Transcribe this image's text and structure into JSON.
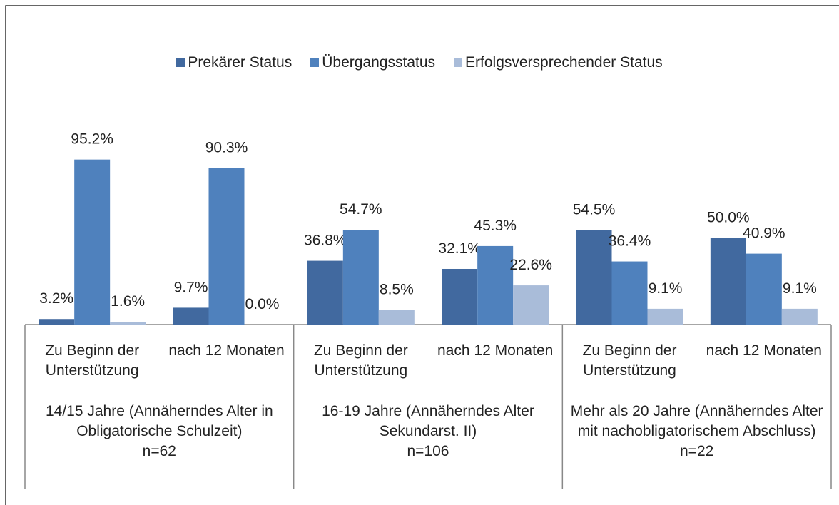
{
  "chart_data": {
    "type": "bar",
    "categories": [
      "Zu Beginn der Unterstützung",
      "nach 12 Monaten",
      "Zu Beginn der Unterstützung",
      "nach 12 Monaten",
      "Zu Beginn der Unterstützung",
      "nach 12 Monaten"
    ],
    "groups": [
      {
        "label": "14/15 Jahre (Annäherndes Alter in Obligatorische Schulzeit)",
        "n": "n=62"
      },
      {
        "label": "16-19 Jahre (Annäherndes Alter Sekundarst. II)",
        "n": "n=106"
      },
      {
        "label": "Mehr als 20 Jahre (Annäherndes Alter mit nachobligatorischem Abschluss)",
        "n": "n=22"
      }
    ],
    "series": [
      {
        "name": "Prekärer Status",
        "color": "#41699f",
        "values": [
          3.2,
          9.7,
          36.8,
          32.1,
          54.5,
          50.0
        ],
        "value_labels": [
          "3.2%",
          "9.7%",
          "36.8%",
          "32.1%",
          "54.5%",
          "50.0%"
        ]
      },
      {
        "name": "Übergangsstatus",
        "color": "#4f81bd",
        "values": [
          95.2,
          90.3,
          54.7,
          45.3,
          36.4,
          40.9
        ],
        "value_labels": [
          "95.2%",
          "90.3%",
          "54.7%",
          "45.3%",
          "36.4%",
          "40.9%"
        ]
      },
      {
        "name": "Erfolgsversprechender Status",
        "color": "#a9bcd9",
        "values": [
          1.6,
          0.0,
          8.5,
          22.6,
          9.1,
          9.1
        ],
        "value_labels": [
          "1.6%",
          "0.0%",
          "8.5%",
          "22.6%",
          "9.1%",
          "9.1%"
        ]
      }
    ],
    "legend": "top"
  }
}
